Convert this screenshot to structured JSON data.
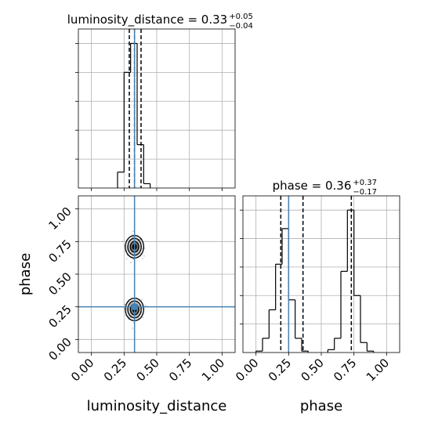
{
  "chart_data": {
    "type": "corner",
    "parameters": [
      "luminosity_distance",
      "phase"
    ],
    "truths": {
      "luminosity_distance": 0.33,
      "phase": 0.25
    },
    "accent_color": "#4682b4",
    "grid": true,
    "panels": [
      {
        "id": "luminosity_distance-marginal",
        "type": "histogram",
        "title": {
          "prefix": "luminosity_distance = 0.33",
          "upper": "+0.05",
          "lower": "−0.04"
        },
        "xlim": [
          -0.1,
          1.1
        ],
        "ylim": [
          0,
          1.1
        ],
        "bins": [
          {
            "x0": 0.2,
            "x1": 0.25,
            "value": 0.11
          },
          {
            "x0": 0.25,
            "x1": 0.3,
            "value": 0.8
          },
          {
            "x0": 0.3,
            "x1": 0.35,
            "value": 1.0
          },
          {
            "x0": 0.35,
            "x1": 0.4,
            "value": 0.3
          },
          {
            "x0": 0.4,
            "x1": 0.45,
            "value": 0.03
          }
        ],
        "quantiles": [
          0.29,
          0.33,
          0.38
        ],
        "truth": 0.33
      },
      {
        "id": "phase-marginal",
        "type": "histogram",
        "title": {
          "prefix": "phase = 0.36",
          "upper": "+0.37",
          "lower": "−0.17"
        },
        "xlim": [
          -0.1,
          1.1
        ],
        "ylim": [
          0,
          1.1
        ],
        "bins": [
          {
            "x0": 0.0,
            "x1": 0.05,
            "value": 0.01
          },
          {
            "x0": 0.05,
            "x1": 0.1,
            "value": 0.1
          },
          {
            "x0": 0.1,
            "x1": 0.15,
            "value": 0.3
          },
          {
            "x0": 0.15,
            "x1": 0.2,
            "value": 0.62
          },
          {
            "x0": 0.2,
            "x1": 0.25,
            "value": 0.87
          },
          {
            "x0": 0.25,
            "x1": 0.3,
            "value": 0.37
          },
          {
            "x0": 0.3,
            "x1": 0.35,
            "value": 0.1
          },
          {
            "x0": 0.35,
            "x1": 0.4,
            "value": 0.01
          },
          {
            "x0": 0.55,
            "x1": 0.6,
            "value": 0.02
          },
          {
            "x0": 0.6,
            "x1": 0.65,
            "value": 0.1
          },
          {
            "x0": 0.65,
            "x1": 0.7,
            "value": 0.57
          },
          {
            "x0": 0.7,
            "x1": 0.75,
            "value": 1.0
          },
          {
            "x0": 0.75,
            "x1": 0.8,
            "value": 0.4
          },
          {
            "x0": 0.8,
            "x1": 0.85,
            "value": 0.07
          },
          {
            "x0": 0.85,
            "x1": 0.9,
            "value": 0.01
          }
        ],
        "quantiles": [
          0.19,
          0.36,
          0.73
        ],
        "truth": 0.25
      },
      {
        "id": "joint",
        "type": "scatter-contour",
        "x_param": "luminosity_distance",
        "y_param": "phase",
        "xlim": [
          -0.1,
          1.1
        ],
        "ylim": [
          -0.1,
          1.1
        ],
        "modes": [
          {
            "x": 0.33,
            "y": 0.71,
            "sx": 0.027,
            "sy": 0.036
          },
          {
            "x": 0.33,
            "y": 0.23,
            "sx": 0.027,
            "sy": 0.036
          }
        ],
        "truth": {
          "x": 0.33,
          "y": 0.25
        }
      }
    ],
    "xticks": [
      "0.00",
      "0.25",
      "0.50",
      "0.75",
      "1.00"
    ],
    "yticks": [
      "0.00",
      "0.25",
      "0.50",
      "0.75",
      "1.00"
    ],
    "xlabels": [
      "luminosity_distance",
      "phase"
    ],
    "ylabel": "phase"
  }
}
